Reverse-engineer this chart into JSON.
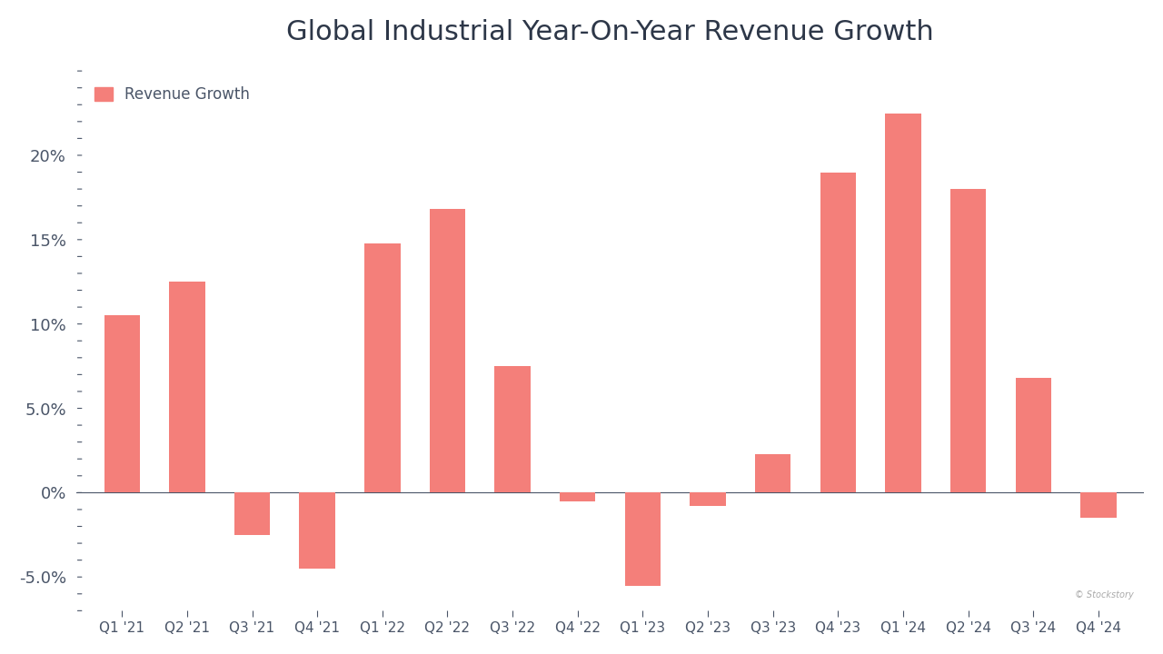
{
  "title": "Global Industrial Year-On-Year Revenue Growth",
  "legend_label": "Revenue Growth",
  "bar_color": "#F47F7A",
  "categories": [
    "Q1 '21",
    "Q2 '21",
    "Q3 '21",
    "Q4 '21",
    "Q1 '22",
    "Q2 '22",
    "Q3 '22",
    "Q4 '22",
    "Q1 '23",
    "Q2 '23",
    "Q3 '23",
    "Q4 '23",
    "Q1 '24",
    "Q2 '24",
    "Q3 '24",
    "Q4 '24"
  ],
  "values": [
    10.5,
    12.5,
    -2.5,
    -4.5,
    14.8,
    16.8,
    7.5,
    -0.5,
    -5.5,
    -0.8,
    2.3,
    19.0,
    22.5,
    18.0,
    6.8,
    -1.5
  ],
  "ylim": [
    -7.0,
    25.5
  ],
  "yticks": [
    -5.0,
    0.0,
    5.0,
    10.0,
    15.0,
    20.0
  ],
  "ytick_labels": [
    "-5.0%",
    "0%",
    "5.0%",
    "10%",
    "15%",
    "20%"
  ],
  "background_color": "#ffffff",
  "title_fontsize": 22,
  "title_color": "#2d3748",
  "tick_color": "#4a5568",
  "watermark": "© Stockstory"
}
